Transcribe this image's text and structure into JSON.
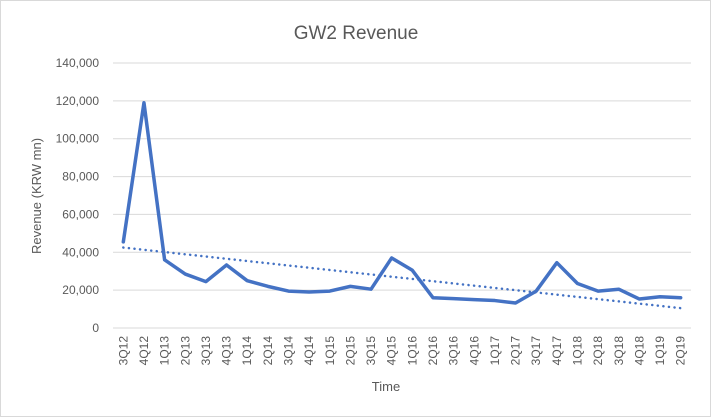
{
  "chart_data": {
    "type": "line",
    "title": "GW2 Revenue",
    "xlabel": "Time",
    "ylabel": "Revenue (KRW mn)",
    "ylim": [
      0,
      140000
    ],
    "yticks": [
      0,
      20000,
      40000,
      60000,
      80000,
      100000,
      120000,
      140000
    ],
    "ytick_labels": [
      "0",
      "20,000",
      "40,000",
      "60,000",
      "80,000",
      "100,000",
      "120,000",
      "140,000"
    ],
    "grid": true,
    "categories": [
      "3Q12",
      "4Q12",
      "1Q13",
      "2Q13",
      "3Q13",
      "4Q13",
      "1Q14",
      "2Q14",
      "3Q14",
      "4Q14",
      "1Q15",
      "2Q15",
      "3Q15",
      "4Q15",
      "1Q16",
      "2Q16",
      "3Q16",
      "4Q16",
      "1Q17",
      "2Q17",
      "3Q17",
      "4Q17",
      "1Q18",
      "2Q18",
      "3Q18",
      "4Q18",
      "1Q19",
      "2Q19"
    ],
    "series": [
      {
        "values": [
          45500,
          119000,
          36000,
          28500,
          24500,
          33300,
          25000,
          22000,
          19500,
          19000,
          19500,
          22000,
          20500,
          37000,
          30500,
          16000,
          15500,
          15000,
          14500,
          13200,
          19500,
          34500,
          23500,
          19500,
          20500,
          15300,
          16500,
          16000
        ],
        "color": "#4472c4"
      }
    ],
    "trendline": {
      "type": "linear",
      "style": "dotted",
      "start": 42500,
      "end": 10500,
      "color": "#4472c4"
    }
  }
}
